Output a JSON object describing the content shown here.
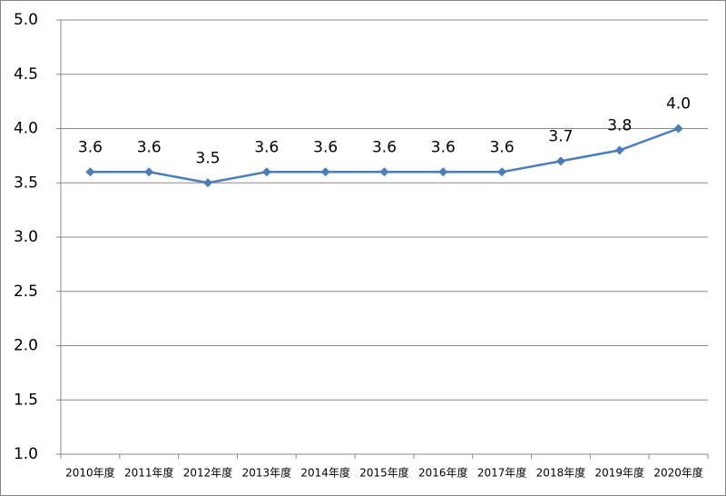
{
  "chart_data": {
    "type": "line",
    "categories": [
      "2010年度",
      "2011年度",
      "2012年度",
      "2013年度",
      "2014年度",
      "2015年度",
      "2016年度",
      "2017年度",
      "2018年度",
      "2019年度",
      "2020年度"
    ],
    "values": [
      3.6,
      3.6,
      3.5,
      3.6,
      3.6,
      3.6,
      3.6,
      3.6,
      3.7,
      3.8,
      4.0
    ],
    "value_labels": [
      "3.6",
      "3.6",
      "3.5",
      "3.6",
      "3.6",
      "3.6",
      "3.6",
      "3.6",
      "3.7",
      "3.8",
      "4.0"
    ],
    "color": "#4a7ebb",
    "ylim": [
      1,
      5
    ],
    "yticks": [
      {
        "value": 1,
        "label": "1.0"
      },
      1.5,
      {
        "value": 2,
        "label": "2.0"
      },
      2.5,
      {
        "value": 3,
        "label": "3.0"
      },
      3.5,
      {
        "value": 4,
        "label": "4.0"
      },
      4.5,
      {
        "value": 5,
        "label": "5.0"
      }
    ],
    "grid": true
  }
}
